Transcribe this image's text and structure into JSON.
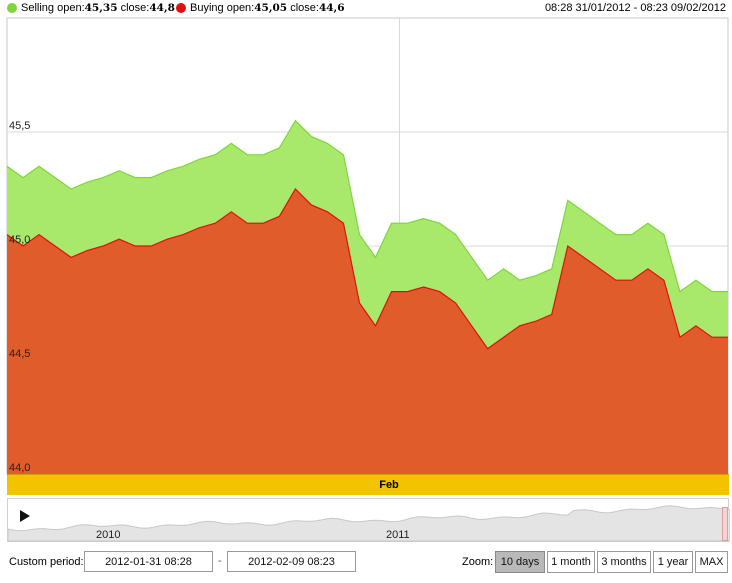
{
  "legend": {
    "selling": {
      "label": "Selling",
      "open_label": "open:",
      "open_value": "45,35",
      "close_label": "close:",
      "close_value": "44,8",
      "color": "#7fd63a"
    },
    "buying": {
      "label": "Buying",
      "open_label": "open:",
      "open_value": "45,05",
      "close_label": "close:",
      "close_value": "44,6",
      "color": "#e01010"
    },
    "range": "08:28 31/01/2012 - 08:23 09/02/2012"
  },
  "chart_data": {
    "type": "area",
    "ylim": [
      44.0,
      46.0
    ],
    "yticks": [
      "44,0",
      "44,5",
      "45,0",
      "45,5"
    ],
    "ytick_values": [
      44.0,
      44.5,
      45.0,
      45.5
    ],
    "x": [
      0,
      1,
      2,
      3,
      4,
      5,
      6,
      7,
      8,
      9,
      10,
      11,
      12,
      13,
      14,
      15,
      16,
      17,
      18,
      19,
      20,
      21,
      22,
      23,
      24,
      25,
      26,
      27,
      28,
      29,
      30,
      31,
      32,
      33,
      34,
      35,
      36,
      37,
      38,
      39,
      40,
      41,
      42,
      43,
      44,
      45
    ],
    "series": [
      {
        "name": "Selling",
        "color": "#a8e86a",
        "line_color": "#7fd63a",
        "values": [
          45.35,
          45.3,
          45.35,
          45.3,
          45.25,
          45.28,
          45.3,
          45.33,
          45.3,
          45.3,
          45.33,
          45.35,
          45.38,
          45.4,
          45.45,
          45.4,
          45.4,
          45.43,
          45.55,
          45.48,
          45.45,
          45.4,
          45.05,
          44.95,
          45.1,
          45.1,
          45.12,
          45.1,
          45.05,
          44.95,
          44.85,
          44.9,
          44.85,
          44.87,
          44.9,
          45.2,
          45.15,
          45.1,
          45.05,
          45.05,
          45.1,
          45.05,
          44.8,
          44.85,
          44.8,
          44.8
        ]
      },
      {
        "name": "Buying",
        "color": "#e05c2a",
        "line_color": "#e01010",
        "values": [
          45.05,
          45.0,
          45.05,
          45.0,
          44.95,
          44.98,
          45.0,
          45.03,
          45.0,
          45.0,
          45.03,
          45.05,
          45.08,
          45.1,
          45.15,
          45.1,
          45.1,
          45.13,
          45.25,
          45.18,
          45.15,
          45.1,
          44.75,
          44.65,
          44.8,
          44.8,
          44.82,
          44.8,
          44.75,
          44.65,
          44.55,
          44.6,
          44.65,
          44.67,
          44.7,
          45.0,
          44.95,
          44.9,
          44.85,
          44.85,
          44.9,
          44.85,
          44.6,
          44.65,
          44.6,
          44.6
        ]
      }
    ],
    "month_band_label": "Feb",
    "feb_marker_index": 24.5
  },
  "navigator": {
    "years": [
      "2010",
      "2011"
    ]
  },
  "controls": {
    "custom_period_label": "Custom period:",
    "date_from": "2012-01-31 08:28",
    "date_separator": "-",
    "date_to": "2012-02-09 08:23",
    "zoom_label": "Zoom:",
    "zoom_buttons": [
      "10 days",
      "1 month",
      "3 months",
      "1 year",
      "MAX"
    ],
    "active_zoom": "10 days"
  }
}
